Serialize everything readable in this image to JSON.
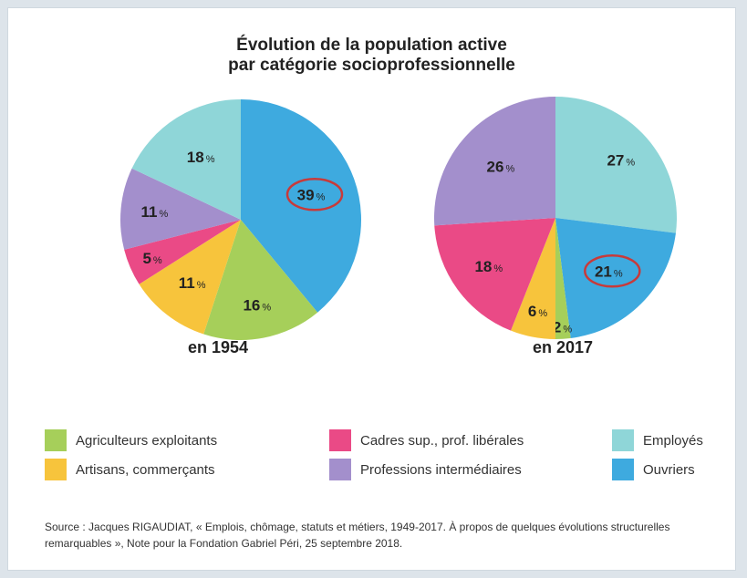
{
  "colors": {
    "agriculteurs": "#a6cf5a",
    "artisans": "#f7c43c",
    "cadres": "#ea4a86",
    "professions": "#a38fcc",
    "employes": "#8fd6d8",
    "ouvriers": "#3eaadf",
    "highlight": "#c83a3a"
  },
  "legend": [
    {
      "key": "agriculteurs",
      "label": "Agriculteurs exploitants"
    },
    {
      "key": "artisans",
      "label": "Artisans, commerçants"
    },
    {
      "key": "cadres",
      "label": "Cadres sup., prof. libérales"
    },
    {
      "key": "professions",
      "label": "Professions intermédiaires"
    },
    {
      "key": "employes",
      "label": "Employés"
    },
    {
      "key": "ouvriers",
      "label": "Ouvriers"
    }
  ],
  "source": "Source : Jacques RIGAUDIAT, « Emplois, chômage, statuts et métiers, 1949-2017. À propos de quelques évolutions structurelles remarquables », Note pour la Fondation Gabriel Péri, 25 septembre 2018.",
  "chart_data": {
    "type": "pie",
    "title_line1": "Évolution de la population active",
    "title_line2": "par catégorie socioprofessionnelle",
    "unit": "%",
    "categories": [
      "Ouvriers",
      "Agriculteurs exploitants",
      "Artisans, commerçants",
      "Cadres sup., prof. libérales",
      "Professions intermédiaires",
      "Employés"
    ],
    "charts": [
      {
        "label": "en 1954",
        "highlighted": "Ouvriers",
        "slices": [
          {
            "key": "ouvriers",
            "value": 39
          },
          {
            "key": "agriculteurs",
            "value": 16
          },
          {
            "key": "artisans",
            "value": 11
          },
          {
            "key": "cadres",
            "value": 5
          },
          {
            "key": "professions",
            "value": 11
          },
          {
            "key": "employes",
            "value": 18
          }
        ]
      },
      {
        "label": "en 2017",
        "highlighted": "Ouvriers",
        "slices": [
          {
            "key": "employes",
            "value": 27
          },
          {
            "key": "ouvriers",
            "value": 21
          },
          {
            "key": "agriculteurs",
            "value": 2
          },
          {
            "key": "artisans",
            "value": 6
          },
          {
            "key": "cadres",
            "value": 18
          },
          {
            "key": "professions",
            "value": 26
          }
        ]
      }
    ]
  }
}
